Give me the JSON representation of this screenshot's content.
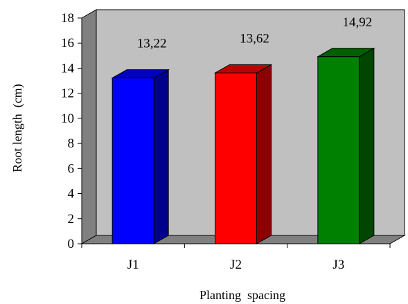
{
  "chart_data": {
    "type": "bar",
    "style": "3d-column",
    "categories": [
      "J1",
      "J2",
      "J3"
    ],
    "values": [
      13.22,
      13.62,
      14.92
    ],
    "data_labels": [
      "13,22",
      "13,62",
      "14,92"
    ],
    "colors": [
      "#0000FF",
      "#FF0000",
      "#008000"
    ],
    "xlabel": "Planting  spacing",
    "ylabel": "Root length  (cm)",
    "ylim": [
      0,
      18
    ],
    "yticks": [
      0,
      2,
      4,
      6,
      8,
      10,
      12,
      14,
      16,
      18
    ],
    "ytick_labels": [
      "0",
      "2",
      "4",
      "6",
      "8",
      "10",
      "12",
      "14",
      "16",
      "18"
    ],
    "wall_color": "#C0C0C0",
    "legend": "none",
    "grid": false
  }
}
